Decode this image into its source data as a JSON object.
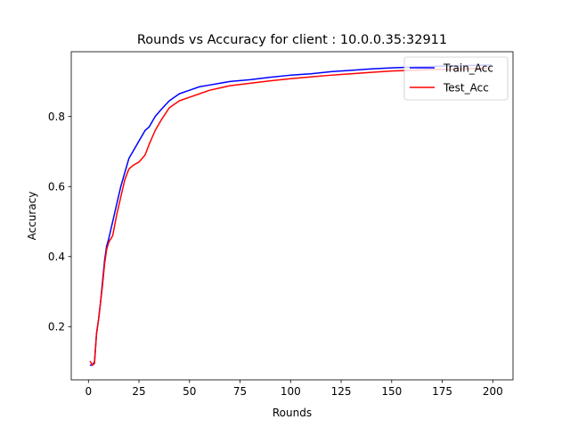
{
  "chart_data": {
    "type": "line",
    "title": "Rounds vs Accuracy for client : 10.0.0.35:32911",
    "xlabel": "Rounds",
    "ylabel": "Accuracy",
    "xlim": [
      -8.5,
      210
    ],
    "ylim": [
      0.048,
      0.985
    ],
    "xticks": [
      0,
      25,
      50,
      75,
      100,
      125,
      150,
      175,
      200
    ],
    "yticks": [
      0.2,
      0.4,
      0.6,
      0.8
    ],
    "ytick_labels": [
      "0.2",
      "0.4",
      "0.6",
      "0.8"
    ],
    "grid": false,
    "legend_position": "upper right",
    "series": [
      {
        "name": "Train_Acc",
        "color": "#0000ff",
        "x": [
          1,
          2,
          3,
          4,
          5,
          6,
          7,
          8,
          9,
          10,
          12,
          14,
          16,
          18,
          20,
          22,
          25,
          28,
          30,
          33,
          36,
          40,
          45,
          50,
          55,
          60,
          70,
          80,
          90,
          100,
          110,
          120,
          130,
          140,
          150,
          160,
          170,
          180,
          190,
          199
        ],
        "y": [
          0.09,
          0.09,
          0.1,
          0.18,
          0.22,
          0.27,
          0.33,
          0.39,
          0.43,
          0.45,
          0.5,
          0.55,
          0.6,
          0.64,
          0.68,
          0.7,
          0.73,
          0.76,
          0.77,
          0.8,
          0.82,
          0.845,
          0.865,
          0.875,
          0.885,
          0.89,
          0.9,
          0.905,
          0.912,
          0.918,
          0.922,
          0.928,
          0.932,
          0.936,
          0.939,
          0.941,
          0.943,
          0.945,
          0.946,
          0.947
        ]
      },
      {
        "name": "Test_Acc",
        "color": "#ff0000",
        "x": [
          1,
          2,
          3,
          4,
          5,
          6,
          7,
          8,
          9,
          10,
          12,
          14,
          16,
          18,
          20,
          22,
          25,
          28,
          30,
          33,
          36,
          40,
          45,
          50,
          55,
          60,
          70,
          80,
          90,
          100,
          110,
          120,
          130,
          140,
          150,
          160,
          170,
          180,
          190,
          199
        ],
        "y": [
          0.1,
          0.09,
          0.095,
          0.18,
          0.22,
          0.27,
          0.32,
          0.38,
          0.42,
          0.44,
          0.46,
          0.52,
          0.57,
          0.62,
          0.65,
          0.66,
          0.67,
          0.69,
          0.72,
          0.76,
          0.79,
          0.825,
          0.845,
          0.855,
          0.865,
          0.875,
          0.888,
          0.895,
          0.902,
          0.908,
          0.913,
          0.918,
          0.922,
          0.926,
          0.93,
          0.932,
          0.934,
          0.935,
          0.937,
          0.938
        ]
      }
    ]
  }
}
